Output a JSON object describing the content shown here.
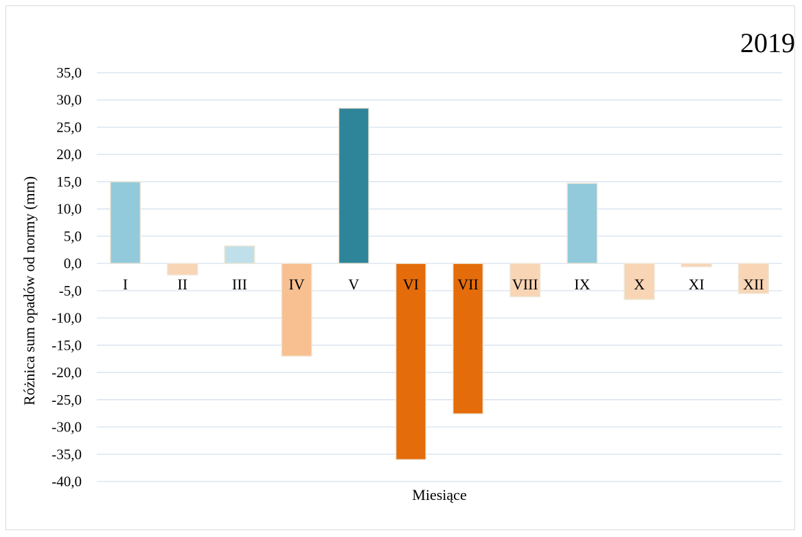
{
  "chart_data": {
    "type": "bar",
    "title": "2019",
    "xlabel": "Miesiące",
    "ylabel": "Różnica sum opadów od normy (mm)",
    "ylim": [
      -40,
      35
    ],
    "y_ticks": [
      "35,0",
      "30,0",
      "25,0",
      "20,0",
      "15,0",
      "10,0",
      "5,0",
      "0,0",
      "-5,0",
      "-10,0",
      "-15,0",
      "-20,0",
      "-25,0",
      "-30,0",
      "-35,0",
      "-40,0"
    ],
    "categories": [
      "I",
      "II",
      "III",
      "IV",
      "V",
      "VI",
      "VII",
      "VIII",
      "IX",
      "X",
      "XI",
      "XII"
    ],
    "values": [
      15.0,
      -2.1,
      3.2,
      -17.0,
      28.5,
      -36.0,
      -27.6,
      -6.1,
      14.7,
      -6.6,
      -0.6,
      -5.5
    ],
    "colors": [
      "#92cadb",
      "#f8d5b5",
      "#bfe0ea",
      "#f8c090",
      "#2e8499",
      "#e46c0a",
      "#e46c0a",
      "#f8d5b5",
      "#92cadb",
      "#f8d5b5",
      "#f8d5b5",
      "#f8d5b5"
    ],
    "grid": true,
    "legend": "none"
  }
}
